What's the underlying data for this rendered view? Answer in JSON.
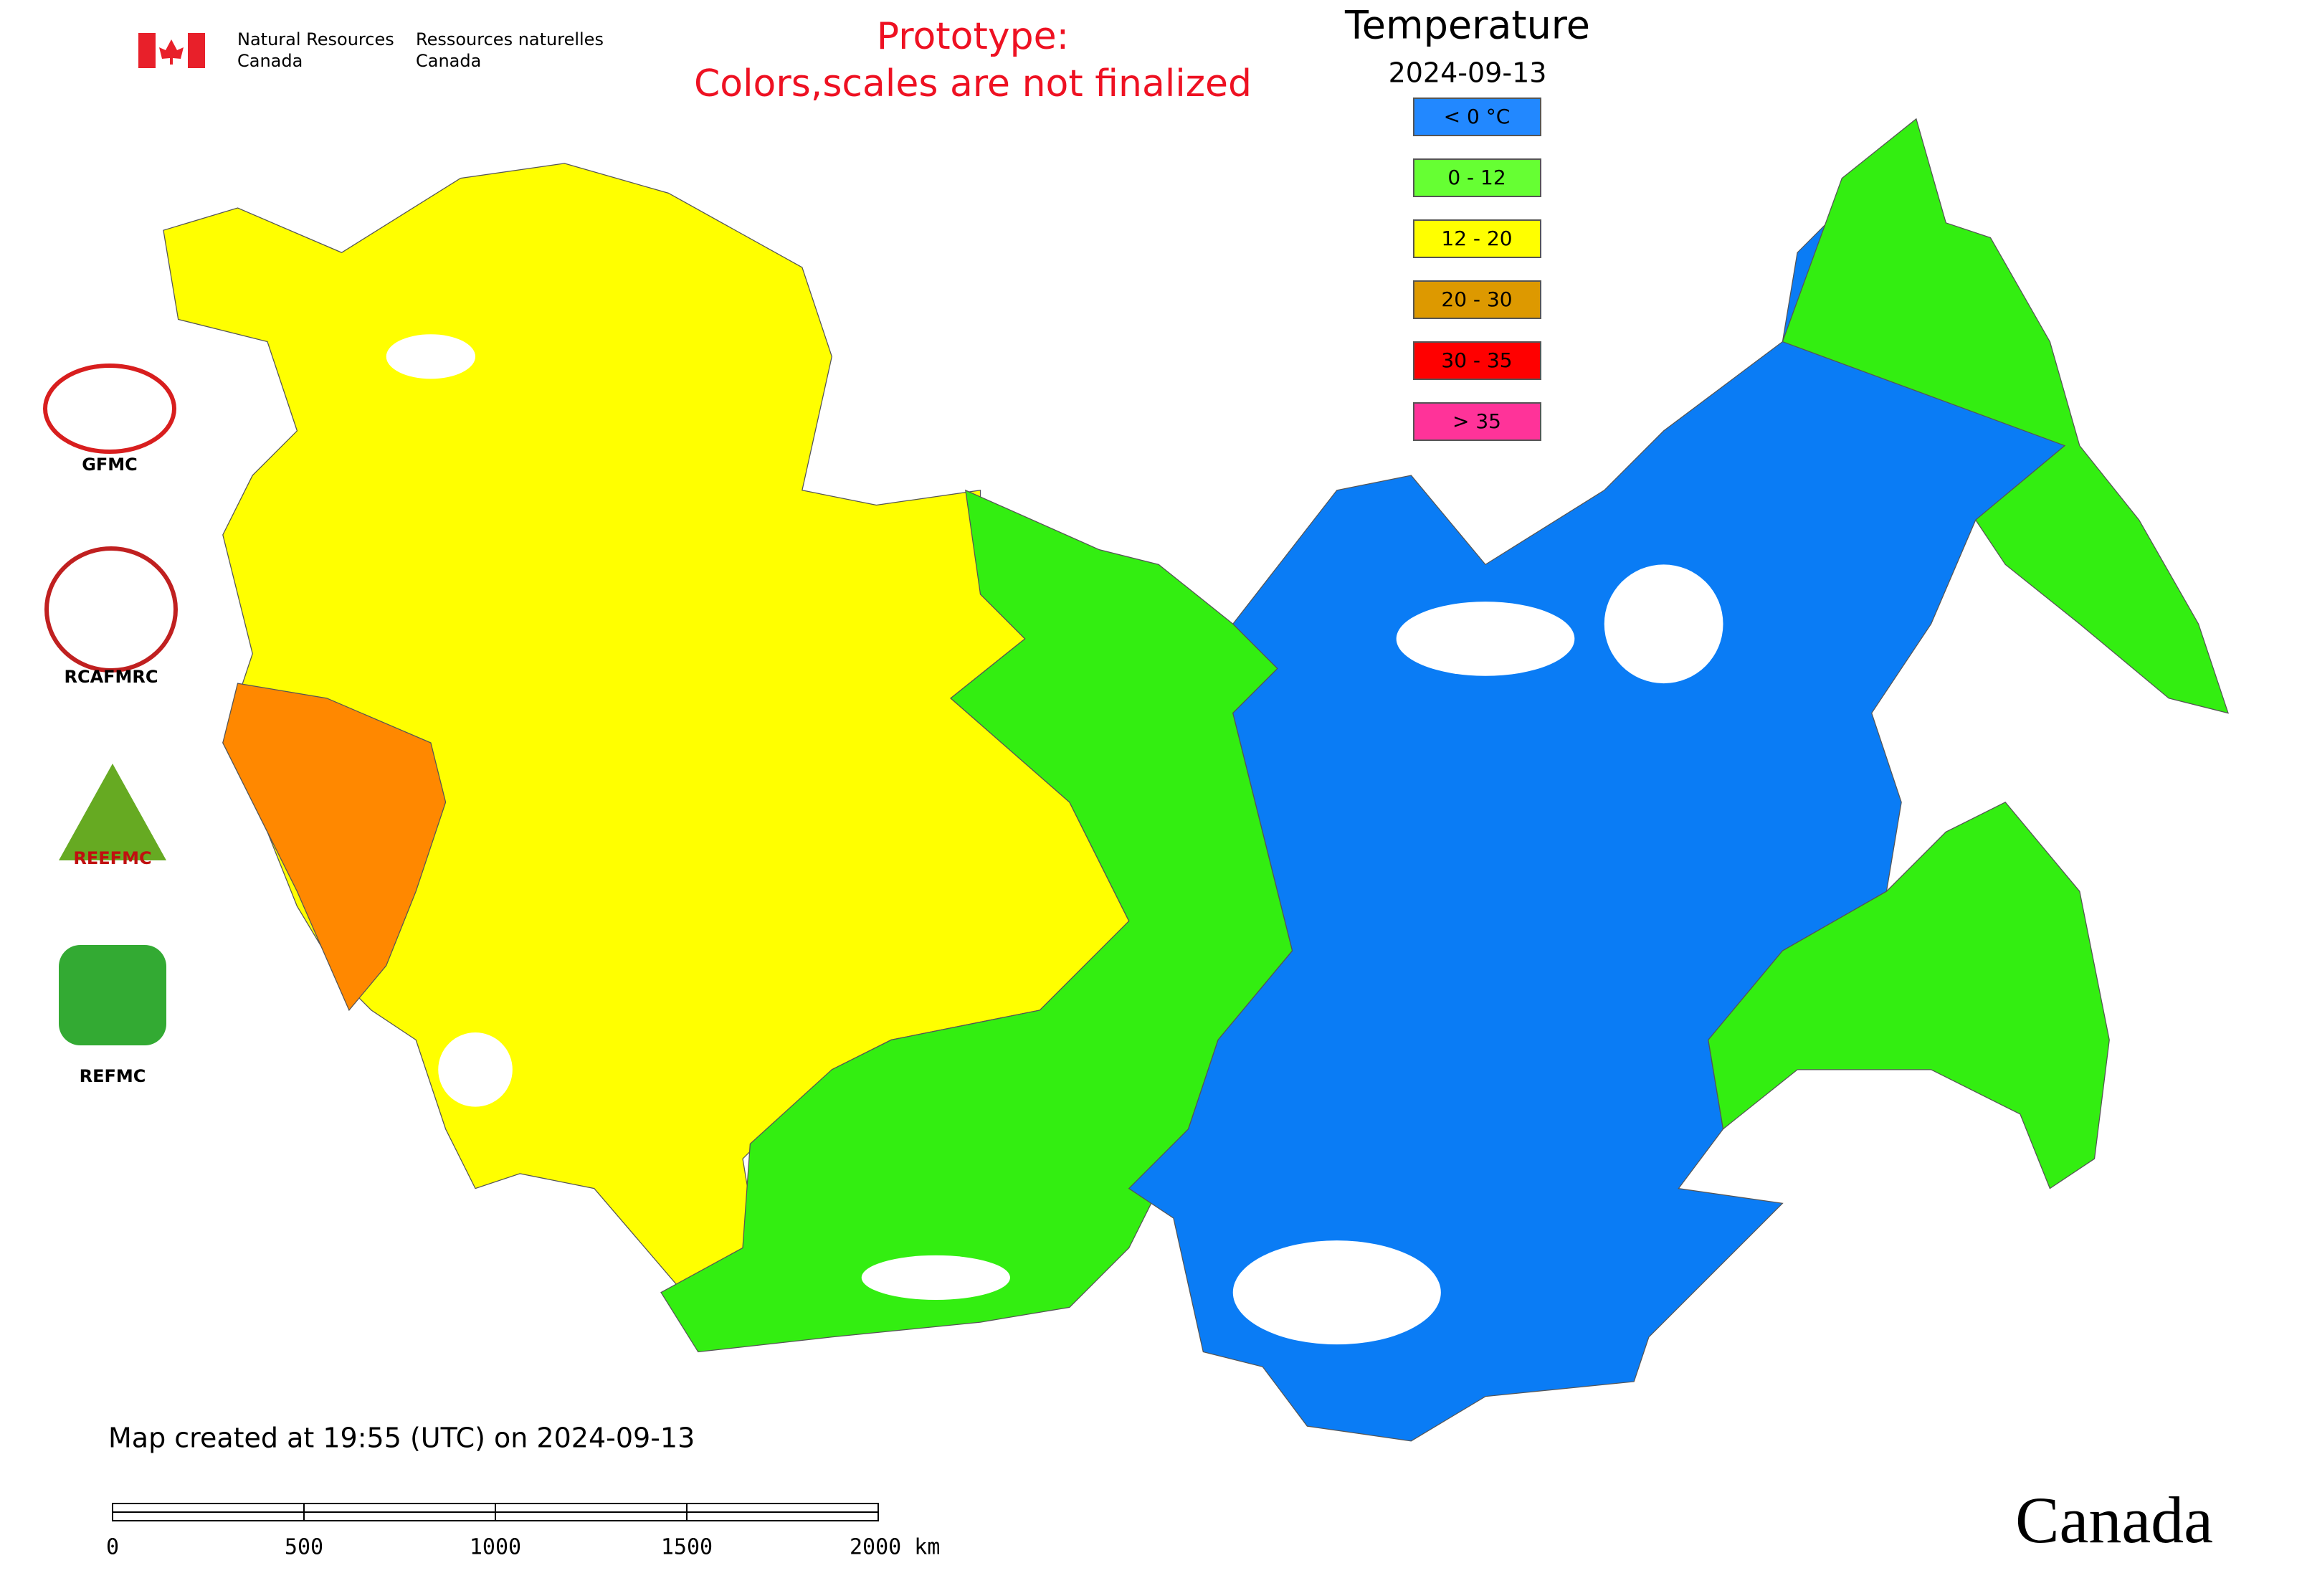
{
  "header": {
    "agency_en": [
      "Natural Resources",
      "Canada"
    ],
    "agency_fr": [
      "Ressources naturelles",
      "Canada"
    ]
  },
  "notice": [
    "Prototype:",
    "Colors,scales are not finalized"
  ],
  "legend": {
    "title": "Temperature",
    "date": "2024-09-13",
    "items": [
      {
        "label": "< 0 °C",
        "color": "#2288ff"
      },
      {
        "label": "0 - 12",
        "color": "#66ff33"
      },
      {
        "label": "12 - 20",
        "color": "#ffff00"
      },
      {
        "label": "20 - 30",
        "color": "#dd9900"
      },
      {
        "label": "30 - 35",
        "color": "#ff0000"
      },
      {
        "label": "> 35",
        "color": "#ff3399"
      }
    ]
  },
  "logos": [
    "GFMC",
    "RCAFMRC",
    "REEFMC",
    "REFMC"
  ],
  "created": "Map created at 19:55 (UTC) on 2024-09-13",
  "scale_bar": [
    "0",
    "500",
    "1000",
    "1500",
    "2000 km"
  ],
  "wordmark": "Canada"
}
